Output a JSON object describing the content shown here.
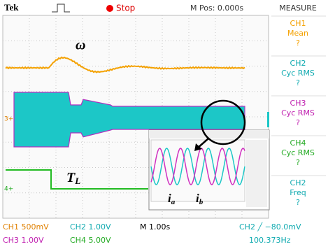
{
  "header": {
    "brand": "Tek",
    "state": "Stop",
    "position": "M Pos: 0.000s",
    "menu_title": "MEASURE"
  },
  "menu": [
    {
      "channel": "CH1",
      "measure": "Mean",
      "reading": "?"
    },
    {
      "channel": "CH2",
      "measure": "Cyc RMS",
      "reading": "?"
    },
    {
      "channel": "CH3",
      "measure": "Cyc RMS",
      "reading": "?"
    },
    {
      "channel": "CH4",
      "measure": "Cyc RMS",
      "reading": "?"
    },
    {
      "channel": "CH2",
      "measure": "Freq",
      "reading": "?"
    }
  ],
  "markers": {
    "ch3": "3+",
    "ch4": "4+"
  },
  "annotations": {
    "speed": "ω",
    "torque": {
      "main": "T",
      "sub": "L"
    },
    "current_a": {
      "main": "i",
      "sub": "a"
    },
    "current_b": {
      "main": "i",
      "sub": "b"
    }
  },
  "footer": {
    "ch1": "CH1 500mV",
    "ch2": "CH2 1.00V",
    "timebase": "M 1.00s",
    "trigger": "CH2 ╱ −80.0mV",
    "ch3": "CH3 1.00V",
    "ch4": "CH4 5.00V",
    "frequency": "100.373Hz"
  }
}
